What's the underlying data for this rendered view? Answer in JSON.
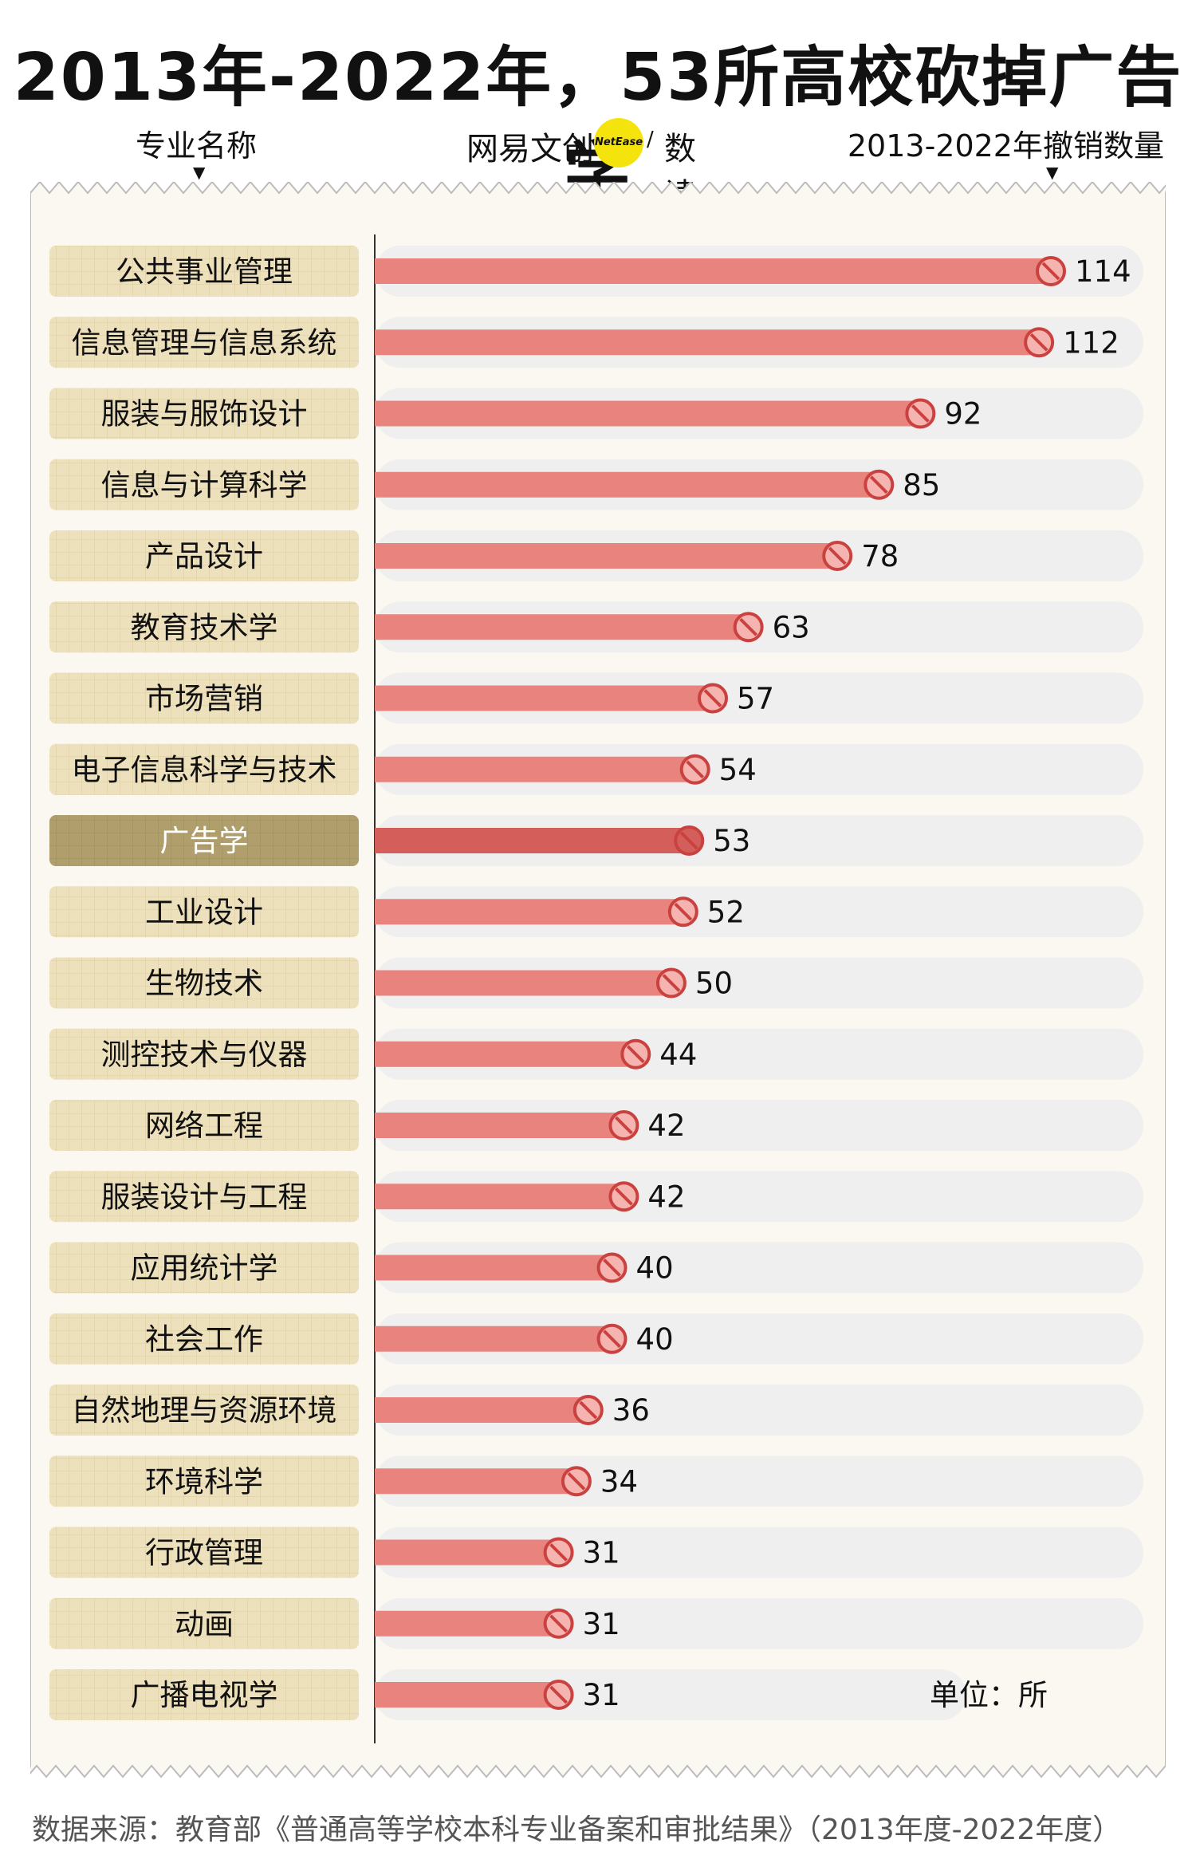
{
  "title": "2013年-2022年，53所高校砍掉广告学",
  "header": {
    "left_label": "专业名称",
    "right_label": "2013-2022年撤销数量",
    "brand_prefix": "网易文创",
    "brand_badge": "NetEase",
    "brand_suffix": "数读"
  },
  "unit_note": "单位：所",
  "footer": "数据来源：教育部《普通高等学校本科专业备案和审批结果》（2013年度-2022年度）",
  "colors": {
    "bar": "#e8837d",
    "bar_highlight": "#d45e5a",
    "track": "#efefef",
    "label_bg": "#ede0bd",
    "label_bg_highlight": "#b09f6c",
    "icon_border": "#c9423f"
  },
  "icon": "prohibited-icon",
  "chart_data": {
    "type": "bar",
    "orientation": "horizontal",
    "highlight": "广告学",
    "categories": [
      "公共事业管理",
      "信息管理与信息系统",
      "服装与服饰设计",
      "信息与计算科学",
      "产品设计",
      "教育技术学",
      "市场营销",
      "电子信息科学与技术",
      "广告学",
      "工业设计",
      "生物技术",
      "测控技术与仪器",
      "网络工程",
      "服装设计与工程",
      "应用统计学",
      "社会工作",
      "自然地理与资源环境",
      "环境科学",
      "行政管理",
      "动画",
      "广播电视学"
    ],
    "values": [
      114,
      112,
      92,
      85,
      78,
      63,
      57,
      54,
      53,
      52,
      50,
      44,
      42,
      42,
      40,
      40,
      36,
      34,
      31,
      31,
      31
    ],
    "xlabel": "2013-2022年撤销数量",
    "ylabel": "专业名称",
    "xlim": [
      0,
      114
    ]
  }
}
